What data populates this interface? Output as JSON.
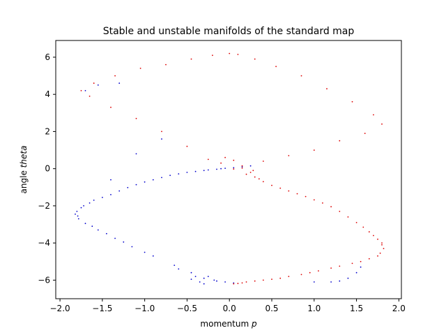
{
  "chart_data": {
    "type": "scatter",
    "title": "Stable and unstable manifolds of the standard map",
    "xlabel_prefix": "momentum ",
    "xlabel_var": "p",
    "ylabel_prefix": "angle ",
    "ylabel_var": "theta",
    "xlim": [
      -2.05,
      2.03
    ],
    "ylim": [
      -7.0,
      6.9
    ],
    "xticks": [
      -2.0,
      -1.5,
      -1.0,
      -0.5,
      0.0,
      0.5,
      1.0,
      1.5,
      2.0
    ],
    "xtick_labels": [
      "−2.0",
      "−1.5",
      "−1.0",
      "−0.5",
      "0.0",
      "0.5",
      "1.0",
      "1.5",
      "2.0"
    ],
    "yticks": [
      -6,
      -4,
      -2,
      0,
      2,
      4,
      6
    ],
    "ytick_labels": [
      "−6",
      "−4",
      "−2",
      "0",
      "2",
      "4",
      "6"
    ],
    "grid": false,
    "series": [
      {
        "color": "#0000cc",
        "points": [
          [
            -0.05,
            0.02
          ],
          [
            -0.15,
            -0.03
          ],
          [
            -0.3,
            -0.1
          ],
          [
            -0.5,
            -0.2
          ],
          [
            -0.7,
            -0.36
          ],
          [
            -0.9,
            -0.6
          ],
          [
            -1.1,
            -0.86
          ],
          [
            -1.3,
            -1.2
          ],
          [
            -1.5,
            -1.55
          ],
          [
            -1.65,
            -1.85
          ],
          [
            -1.75,
            -2.1
          ],
          [
            -1.8,
            -2.3
          ],
          [
            -1.82,
            -2.45
          ],
          [
            -1.78,
            -2.7
          ],
          [
            -1.7,
            -2.95
          ],
          [
            -1.55,
            -3.3
          ],
          [
            -1.35,
            -3.75
          ],
          [
            -1.15,
            -4.2
          ],
          [
            -0.9,
            -4.7
          ],
          [
            -0.65,
            -5.2
          ],
          [
            -0.45,
            -5.6
          ],
          [
            -0.3,
            -5.9
          ],
          [
            -0.15,
            -6.05
          ],
          [
            -0.05,
            -6.1
          ],
          [
            0.05,
            -6.15
          ],
          [
            -0.35,
            -6.1
          ],
          [
            -0.25,
            -5.8
          ],
          [
            -0.4,
            -5.8
          ],
          [
            -0.3,
            -6.2
          ],
          [
            -0.18,
            -6.0
          ],
          [
            -0.45,
            -5.95
          ],
          [
            -0.6,
            -5.4
          ],
          [
            -1.0,
            -4.5
          ],
          [
            -1.25,
            -3.95
          ],
          [
            -1.45,
            -3.5
          ],
          [
            -1.62,
            -3.1
          ],
          [
            -1.79,
            -2.55
          ],
          [
            -1.72,
            -2.0
          ],
          [
            -1.6,
            -1.7
          ],
          [
            -1.4,
            -1.4
          ],
          [
            -1.2,
            -1.02
          ],
          [
            -1.0,
            -0.72
          ],
          [
            -0.8,
            -0.48
          ],
          [
            -0.6,
            -0.28
          ],
          [
            -0.4,
            -0.15
          ],
          [
            -0.25,
            -0.07
          ],
          [
            -0.1,
            0.0
          ],
          [
            0.05,
            0.05
          ],
          [
            0.15,
            0.1
          ],
          [
            0.25,
            0.15
          ],
          [
            1.55,
            -5.3
          ],
          [
            1.5,
            -5.6
          ],
          [
            1.4,
            -5.9
          ],
          [
            1.3,
            -6.05
          ],
          [
            1.2,
            -6.1
          ],
          [
            1.0,
            -6.1
          ],
          [
            -1.4,
            -0.6
          ],
          [
            -1.1,
            0.8
          ],
          [
            -0.8,
            1.6
          ],
          [
            -1.3,
            4.6
          ],
          [
            -1.55,
            4.5
          ],
          [
            -1.7,
            4.2
          ]
        ]
      },
      {
        "color": "#dd0000",
        "points": [
          [
            0.05,
            -0.02
          ],
          [
            0.15,
            0.03
          ],
          [
            0.3,
            -0.45
          ],
          [
            0.5,
            -0.9
          ],
          [
            0.7,
            -1.2
          ],
          [
            0.9,
            -1.5
          ],
          [
            1.1,
            -1.85
          ],
          [
            1.3,
            -2.3
          ],
          [
            1.5,
            -2.9
          ],
          [
            1.65,
            -3.4
          ],
          [
            1.75,
            -3.8
          ],
          [
            1.8,
            -4.1
          ],
          [
            1.82,
            -4.3
          ],
          [
            1.78,
            -4.55
          ],
          [
            1.65,
            -4.85
          ],
          [
            1.45,
            -5.1
          ],
          [
            1.2,
            -5.35
          ],
          [
            0.95,
            -5.6
          ],
          [
            0.7,
            -5.8
          ],
          [
            0.5,
            -5.95
          ],
          [
            0.3,
            -6.05
          ],
          [
            0.15,
            -6.15
          ],
          [
            0.05,
            -6.2
          ],
          [
            0.4,
            -0.7
          ],
          [
            0.6,
            -1.05
          ],
          [
            0.8,
            -1.35
          ],
          [
            1.0,
            -1.68
          ],
          [
            1.2,
            -2.05
          ],
          [
            1.4,
            -2.6
          ],
          [
            1.58,
            -3.15
          ],
          [
            1.7,
            -3.6
          ],
          [
            1.8,
            -4.0
          ],
          [
            1.75,
            -4.7
          ],
          [
            1.55,
            -5.0
          ],
          [
            1.3,
            -5.25
          ],
          [
            1.05,
            -5.5
          ],
          [
            0.85,
            -5.7
          ],
          [
            0.6,
            -5.9
          ],
          [
            0.4,
            -6.0
          ],
          [
            0.2,
            -6.1
          ],
          [
            0.1,
            -6.18
          ],
          [
            0.2,
            -0.3
          ],
          [
            0.25,
            -0.2
          ],
          [
            0.35,
            -0.55
          ],
          [
            0.28,
            -0.1
          ],
          [
            0.0,
            6.2
          ],
          [
            -0.2,
            6.1
          ],
          [
            -0.45,
            5.9
          ],
          [
            -0.75,
            5.6
          ],
          [
            -1.05,
            5.4
          ],
          [
            -1.35,
            5.0
          ],
          [
            -1.6,
            4.6
          ],
          [
            -1.75,
            4.2
          ],
          [
            -1.65,
            3.9
          ],
          [
            -1.4,
            3.3
          ],
          [
            -1.1,
            2.7
          ],
          [
            -0.8,
            2.0
          ],
          [
            -0.5,
            1.2
          ],
          [
            -0.25,
            0.5
          ],
          [
            0.1,
            6.15
          ],
          [
            0.3,
            5.9
          ],
          [
            0.55,
            5.5
          ],
          [
            0.85,
            5.0
          ],
          [
            1.15,
            4.3
          ],
          [
            1.45,
            3.6
          ],
          [
            1.7,
            2.9
          ],
          [
            1.8,
            2.4
          ],
          [
            1.6,
            1.9
          ],
          [
            1.3,
            1.5
          ],
          [
            1.0,
            1.0
          ],
          [
            0.7,
            0.7
          ],
          [
            0.4,
            0.4
          ],
          [
            0.15,
            0.15
          ],
          [
            -0.1,
            0.3
          ],
          [
            -0.05,
            0.6
          ],
          [
            0.05,
            0.45
          ]
        ]
      }
    ]
  }
}
